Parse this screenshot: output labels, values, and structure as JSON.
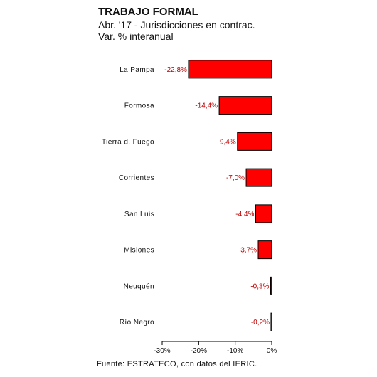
{
  "header": {
    "title": "TRABAJO FORMAL",
    "subtitle": "Abr. '17 - Jurisdicciones en contrac.",
    "subtitle2": "Var. % interanual"
  },
  "footer": {
    "source": "Fuente: ESTRATECO, con datos del IERIC."
  },
  "colors": {
    "bar": "#ff0000",
    "bar_stroke": "#000000",
    "label": "#c00000"
  },
  "chart_data": {
    "type": "bar",
    "orientation": "horizontal",
    "title": "TRABAJO FORMAL",
    "subtitle": "Abr. '17 - Jurisdicciones en contrac. / Var. % interanual",
    "categories": [
      "La Pampa",
      "Formosa",
      "Tierra d. Fuego",
      "Corrientes",
      "San Luis",
      "Misiones",
      "Neuquén",
      "Río Negro"
    ],
    "values": [
      -22.8,
      -14.4,
      -9.4,
      -7.0,
      -4.4,
      -3.7,
      -0.3,
      -0.2
    ],
    "data_labels": [
      "-22,8%",
      "-14,4%",
      "-9,4%",
      "-7,0%",
      "-4,4%",
      "-3,7%",
      "-0,3%",
      "-0,2%"
    ],
    "xlim": [
      -30,
      0
    ],
    "x_ticks": [
      -30,
      -20,
      -10,
      0
    ],
    "x_tick_labels": [
      "-30%",
      "-20%",
      "-10%",
      "0%"
    ],
    "grid": false,
    "legend": "none"
  }
}
